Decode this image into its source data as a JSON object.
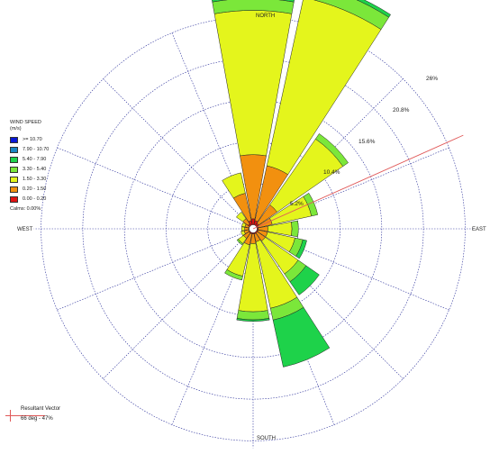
{
  "chart_data": {
    "type": "wind-rose",
    "directions": [
      "N",
      "NNE",
      "NE",
      "ENE",
      "E",
      "ESE",
      "SE",
      "SSE",
      "S",
      "SSW",
      "SW",
      "WSW",
      "W",
      "WNW",
      "NW",
      "NNW"
    ],
    "compass_labels": {
      "north": "NORTH",
      "south": "SOUTH",
      "east": "EAST",
      "west": "WEST"
    },
    "ring_labels": [
      "5.2%",
      "10.4%",
      "15.6%",
      "20.8%",
      "26%"
    ],
    "rings": [
      5.2,
      10.4,
      15.6,
      20.8,
      26
    ],
    "legend": {
      "title": "WIND SPEED",
      "unit": "(m/s)",
      "calms": "Calms: 0.00%",
      "classes": [
        {
          "label": ">= 10.70",
          "color": "#0a18d6"
        },
        {
          "label": "7.90 - 10.70",
          "color": "#1a85c2"
        },
        {
          "label": "5.40 - 7.90",
          "color": "#1ed24a"
        },
        {
          "label": "3.30 - 5.40",
          "color": "#7be73a"
        },
        {
          "label": "1.50 - 3.30",
          "color": "#e4f51c"
        },
        {
          "label": "0.20 - 1.50",
          "color": "#f2900f"
        },
        {
          "label": "0.00 - 0.20",
          "color": "#e01212"
        }
      ]
    },
    "series": [
      {
        "name": "0.00 - 0.20",
        "values": [
          0.8,
          0.6,
          0.4,
          0.2,
          0.2,
          0.2,
          0.2,
          0.2,
          0.2,
          0.2,
          0.2,
          0.1,
          0.1,
          0.1,
          0.3,
          0.6
        ]
      },
      {
        "name": "0.20 - 1.50",
        "values": [
          8.0,
          7.0,
          2.8,
          1.8,
          1.2,
          1.2,
          1.2,
          1.0,
          1.2,
          1.4,
          0.8,
          0.6,
          0.5,
          0.5,
          0.8,
          3.5
        ]
      },
      {
        "name": "1.50 - 3.30",
        "values": [
          18.0,
          21.5,
          10.0,
          5.0,
          3.0,
          3.5,
          5.0,
          8.5,
          8.5,
          4.0,
          0.8,
          0.4,
          0.4,
          0.4,
          1.0,
          2.6
        ]
      },
      {
        "name": "3.30 - 5.40",
        "values": [
          1.5,
          1.8,
          0.8,
          0.8,
          0.8,
          1.0,
          1.2,
          1.5,
          1.0,
          0.5,
          0.2,
          0,
          0,
          0,
          0,
          0
        ]
      },
      {
        "name": "5.40 - 7.90",
        "values": [
          0.3,
          0.4,
          0,
          0,
          0,
          0.5,
          2.0,
          6.0,
          0.2,
          0,
          0,
          0,
          0,
          0,
          0,
          0
        ]
      },
      {
        "name": "7.90 - 10.70",
        "values": [
          0,
          0,
          0,
          0,
          0,
          0,
          0,
          0,
          0,
          0,
          0,
          0,
          0,
          0,
          0,
          0
        ]
      },
      {
        "name": ">= 10.70",
        "values": [
          0,
          0,
          0,
          0,
          0,
          0,
          0,
          0,
          0,
          0,
          0,
          0,
          0,
          0,
          0,
          0
        ]
      }
    ],
    "resultant_vector": {
      "title": "Resultant Vector",
      "value": "66 deg - 47%",
      "direction_deg": 66,
      "color": "#e05858"
    }
  }
}
